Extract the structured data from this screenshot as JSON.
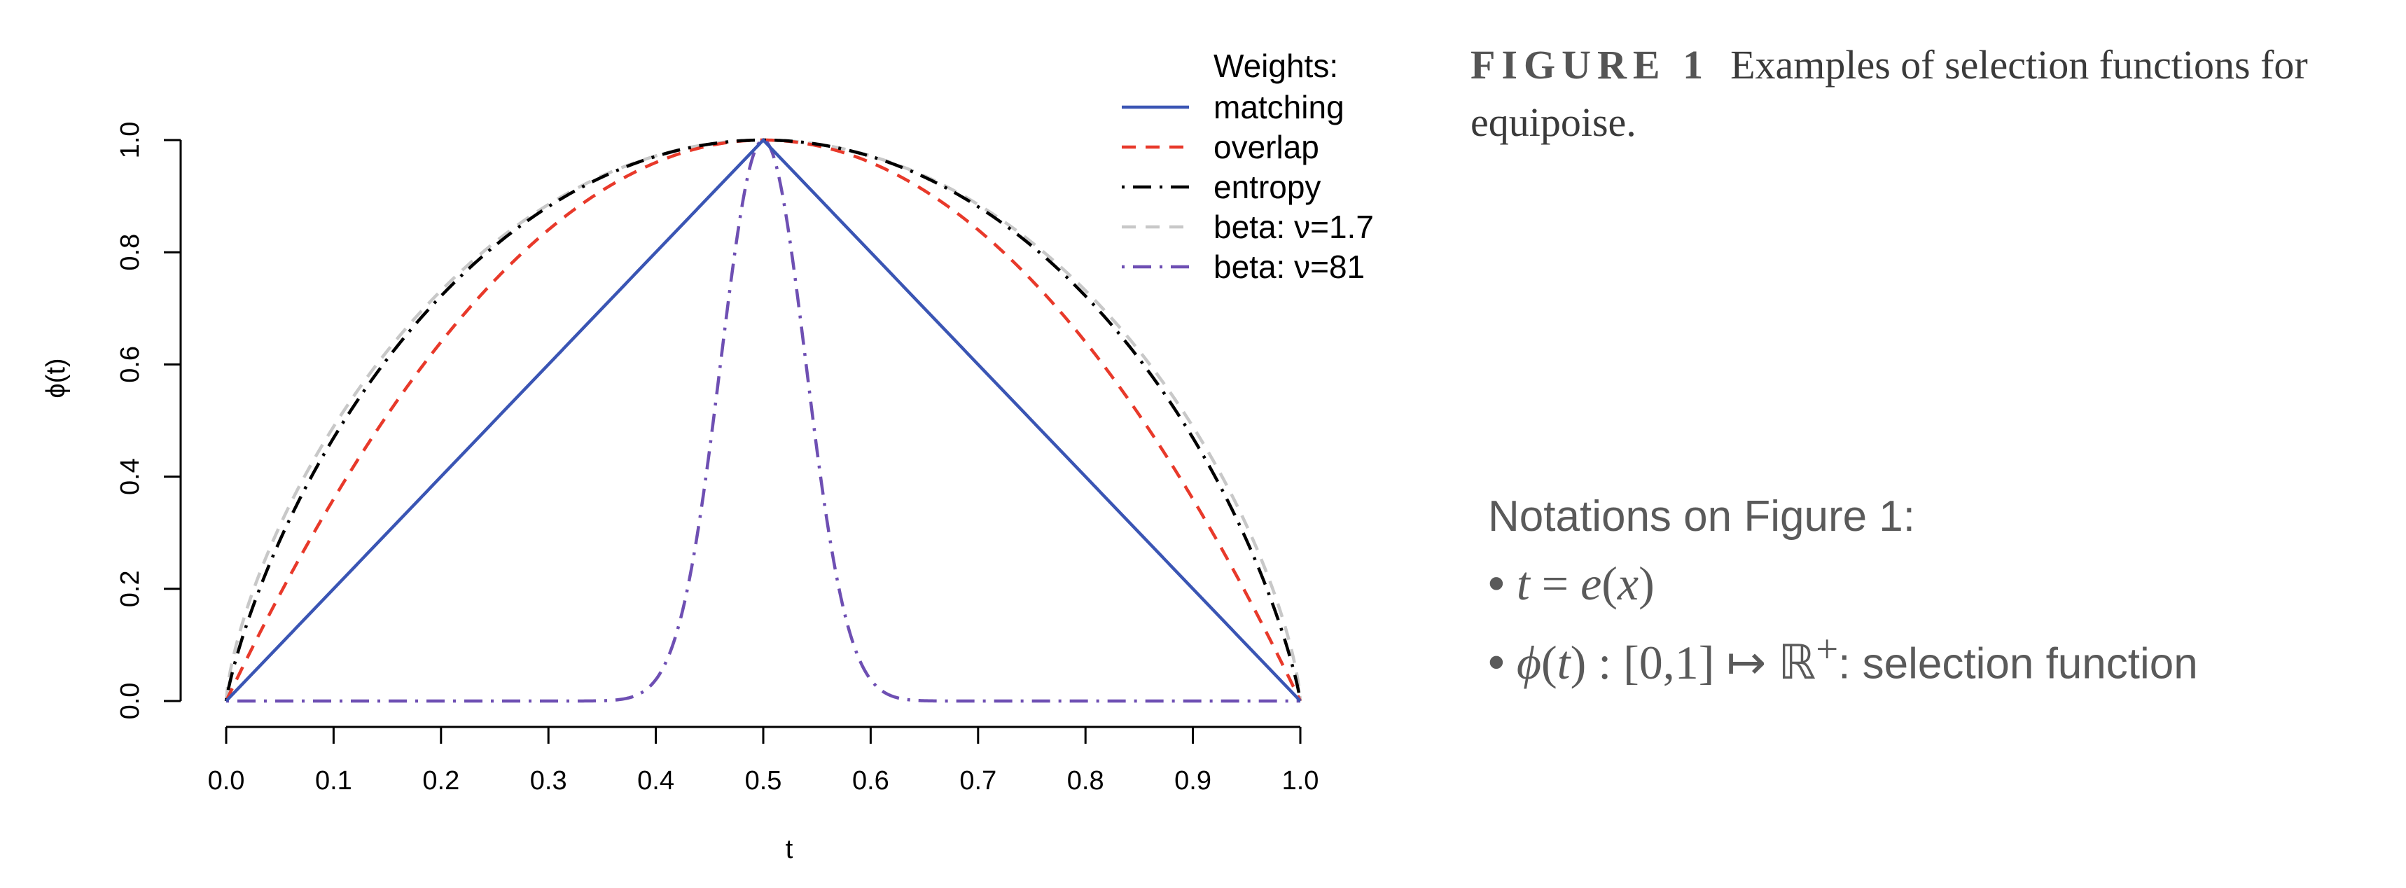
{
  "chart_data": {
    "type": "line",
    "xlabel": "t",
    "ylabel": "ϕ(t)",
    "xlim": [
      0,
      1
    ],
    "ylim": [
      0,
      1
    ],
    "x_ticks": [
      "0.0",
      "0.1",
      "0.2",
      "0.3",
      "0.4",
      "0.5",
      "0.6",
      "0.7",
      "0.8",
      "0.9",
      "1.0"
    ],
    "y_ticks": [
      "0.0",
      "0.2",
      "0.4",
      "0.6",
      "0.8",
      "1.0"
    ],
    "legend_title": "Weights:",
    "legend_position": "top-right",
    "grid": false,
    "series": [
      {
        "name": "matching",
        "formula": "1 - 2|t - 0.5|",
        "color": "#3a55b4",
        "line_style": "solid",
        "x": [
          0,
          0.1,
          0.2,
          0.3,
          0.4,
          0.5,
          0.6,
          0.7,
          0.8,
          0.9,
          1.0
        ],
        "y": [
          0,
          0.2,
          0.4,
          0.6,
          0.8,
          1.0,
          0.8,
          0.6,
          0.4,
          0.2,
          0
        ]
      },
      {
        "name": "overlap",
        "formula": "4 t (1 - t)",
        "color": "#e8392a",
        "line_style": "dashed",
        "x": [
          0,
          0.1,
          0.2,
          0.3,
          0.4,
          0.5,
          0.6,
          0.7,
          0.8,
          0.9,
          1.0
        ],
        "y": [
          0,
          0.36,
          0.64,
          0.84,
          0.96,
          1.0,
          0.96,
          0.84,
          0.64,
          0.36,
          0
        ]
      },
      {
        "name": "entropy",
        "formula": "-(t ln t + (1-t) ln(1-t)) / ln 2",
        "color": "#000000",
        "line_style": "dotdash",
        "x": [
          0,
          0.1,
          0.2,
          0.3,
          0.4,
          0.5,
          0.6,
          0.7,
          0.8,
          0.9,
          1.0
        ],
        "y": [
          0,
          0.469,
          0.722,
          0.881,
          0.971,
          1.0,
          0.971,
          0.881,
          0.722,
          0.469,
          0
        ]
      },
      {
        "name": "beta: ν=1.7",
        "formula": "(4 t (1 - t))^(ν - 1)",
        "nu": 1.7,
        "color": "#c8c8c8",
        "line_style": "dashed",
        "x": [
          0,
          0.1,
          0.2,
          0.3,
          0.4,
          0.5,
          0.6,
          0.7,
          0.8,
          0.9,
          1.0
        ],
        "y": [
          0,
          0.489,
          0.732,
          0.885,
          0.972,
          1.0,
          0.972,
          0.885,
          0.732,
          0.489,
          0
        ]
      },
      {
        "name": "beta: ν=81",
        "formula": "(4 t (1 - t))^(ν - 1)",
        "nu": 81,
        "color": "#6e4fb3",
        "line_style": "dotdash",
        "x": [
          0,
          0.1,
          0.2,
          0.3,
          0.4,
          0.45,
          0.5,
          0.55,
          0.6,
          0.7,
          0.8,
          0.9,
          1.0
        ],
        "y": [
          0,
          0,
          0,
          0,
          0.038,
          0.448,
          1.0,
          0.448,
          0.038,
          0,
          0,
          0,
          0
        ]
      }
    ]
  },
  "caption": {
    "label": "FIGURE 1",
    "text": "Examples of selection functions for equipoise."
  },
  "notes": {
    "title": "Notations on Figure 1:",
    "bullet": "•",
    "line1": {
      "lhs": "t",
      "eq": " = ",
      "fn": "e",
      "arg": "x"
    },
    "line2": {
      "fn": "ϕ",
      "arg": "t",
      "domain": " : [0,1] ↦ ℝ",
      "sup": "+",
      "suffix": ": selection function"
    }
  }
}
